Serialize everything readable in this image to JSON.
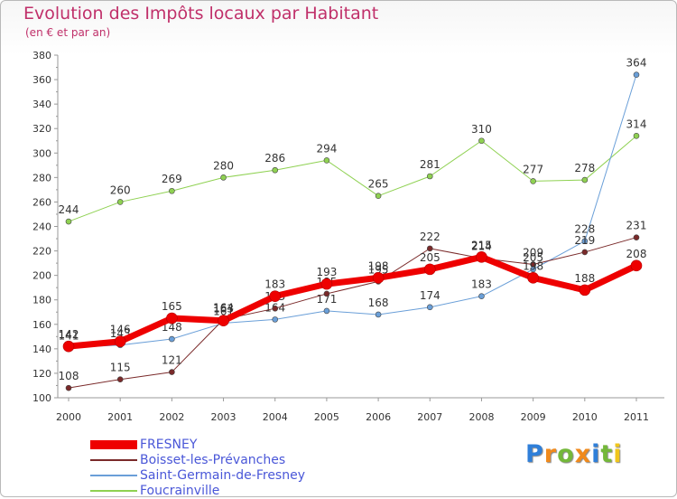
{
  "title": "Evolution des Impôts locaux par Habitant",
  "subtitle": "(en € et par an)",
  "logo": {
    "letters": [
      "P",
      "r",
      "o",
      "x",
      "i",
      "t",
      "i"
    ],
    "colors": [
      "#2f7fd9",
      "#f08a1c",
      "#74b83a",
      "#f08a1c",
      "#2f7fd9",
      "#74b83a",
      "#f0c61c"
    ]
  },
  "chart_data": {
    "type": "line",
    "x": [
      "2000",
      "2001",
      "2002",
      "2003",
      "2004",
      "2005",
      "2006",
      "2007",
      "2008",
      "2009",
      "2010",
      "2011"
    ],
    "ylim": [
      100,
      380
    ],
    "y_ticks": [
      "100",
      "120",
      "140",
      "160",
      "180",
      "200",
      "220",
      "240",
      "260",
      "280",
      "300",
      "320",
      "340",
      "360",
      "380"
    ],
    "grid": false,
    "legend_position": "bottom-left",
    "series": [
      {
        "name": "Foucrainville",
        "color": "#8fd152",
        "width": 1,
        "values": [
          244,
          260,
          269,
          280,
          286,
          294,
          265,
          281,
          310,
          277,
          278,
          314
        ],
        "labels": [
          "244",
          "260",
          "269",
          "280",
          "286",
          "294",
          "265",
          "281",
          "310",
          "277",
          "278",
          "314"
        ]
      },
      {
        "name": "Saint-Germain-de-Fresney",
        "color": "#6a9fd8",
        "width": 1,
        "values": [
          141,
          143,
          148,
          161,
          164,
          171,
          168,
          174,
          183,
          205,
          228,
          364
        ],
        "labels": [
          "141",
          "143",
          "148",
          "161",
          "164",
          "171",
          "168",
          "174",
          "183",
          "205",
          "228",
          "364"
        ]
      },
      {
        "name": "Boisset-les-Prévanches",
        "color": "#7a2a2a",
        "width": 1,
        "values": [
          108,
          115,
          121,
          164,
          173,
          185,
          195,
          222,
          214,
          209,
          219,
          231
        ],
        "labels": [
          "108",
          "115",
          "121",
          "164",
          "173",
          "185",
          "195",
          "222",
          "214",
          "209",
          "219",
          "231"
        ]
      },
      {
        "name": "FRESNEY",
        "color": "#ee0000",
        "width": 7,
        "values": [
          142,
          146,
          165,
          163,
          183,
          193,
          198,
          205,
          215,
          198,
          188,
          208
        ],
        "labels": [
          "142",
          "146",
          "165",
          "163",
          "183",
          "193",
          "198",
          "205",
          "215",
          "198",
          "188",
          "208"
        ]
      }
    ]
  }
}
